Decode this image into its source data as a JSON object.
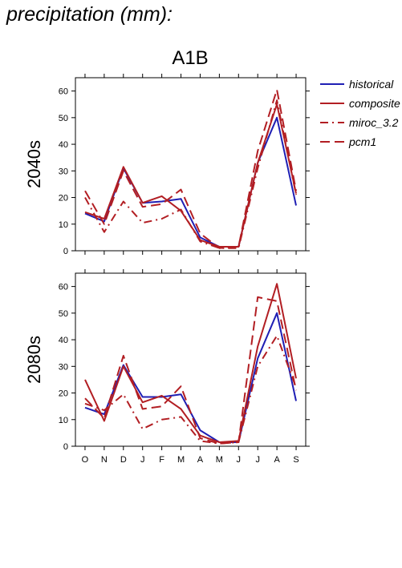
{
  "page": {
    "title": "precipitation (mm):"
  },
  "legend": {
    "items": [
      {
        "label": "historical",
        "color": "#1f1fb4",
        "style": "solid"
      },
      {
        "label": "composite",
        "color": "#b21e23",
        "style": "solid"
      },
      {
        "label": "miroc_3.2",
        "color": "#b21e23",
        "style": "dashdot"
      },
      {
        "label": "pcm1",
        "color": "#b21e23",
        "style": "dashed"
      }
    ]
  },
  "chart_data": [
    {
      "type": "line",
      "title": "A1B",
      "ylabel": "2040s",
      "xlabel": "",
      "categories": [
        "O",
        "N",
        "D",
        "J",
        "F",
        "M",
        "A",
        "M",
        "J",
        "J",
        "A",
        "S"
      ],
      "ylim": [
        0,
        65
      ],
      "yticks": [
        0,
        10,
        20,
        30,
        40,
        50,
        60
      ],
      "series": [
        {
          "name": "historical",
          "values": [
            14,
            11,
            31,
            18,
            18.5,
            19.5,
            5,
            1.5,
            1.5,
            33,
            50,
            17
          ]
        },
        {
          "name": "composite",
          "values": [
            14.5,
            12,
            31.5,
            18,
            20.5,
            15,
            4,
            1.5,
            1.5,
            33,
            55,
            21.5
          ]
        },
        {
          "name": "miroc_3.2",
          "values": [
            20,
            7,
            18.5,
            10.5,
            12,
            15.5,
            3.5,
            1,
            1,
            31,
            56.5,
            21
          ]
        },
        {
          "name": "pcm1",
          "values": [
            22.5,
            10,
            30,
            16.5,
            17.5,
            23,
            6.5,
            1,
            1.5,
            37.5,
            60.5,
            22.5
          ]
        }
      ]
    },
    {
      "type": "line",
      "title": "",
      "ylabel": "2080s",
      "xlabel": "",
      "categories": [
        "O",
        "N",
        "D",
        "J",
        "F",
        "M",
        "A",
        "M",
        "J",
        "J",
        "A",
        "S"
      ],
      "ylim": [
        0,
        65
      ],
      "yticks": [
        0,
        10,
        20,
        30,
        40,
        50,
        60
      ],
      "series": [
        {
          "name": "historical",
          "values": [
            14.5,
            12,
            30.5,
            18.5,
            18.5,
            19.5,
            6,
            1.5,
            1.5,
            33,
            50,
            17
          ]
        },
        {
          "name": "composite",
          "values": [
            25,
            9.5,
            30,
            16.5,
            19,
            14,
            4,
            1.5,
            2,
            37.5,
            61,
            25.5
          ]
        },
        {
          "name": "miroc_3.2",
          "values": [
            16,
            13.5,
            19.5,
            6.5,
            10,
            11,
            2,
            1,
            1.5,
            30,
            41.5,
            22
          ]
        },
        {
          "name": "pcm1",
          "values": [
            18,
            10.5,
            34,
            14,
            15,
            22.5,
            3,
            1,
            1.5,
            56,
            54.5,
            21
          ]
        }
      ]
    }
  ]
}
